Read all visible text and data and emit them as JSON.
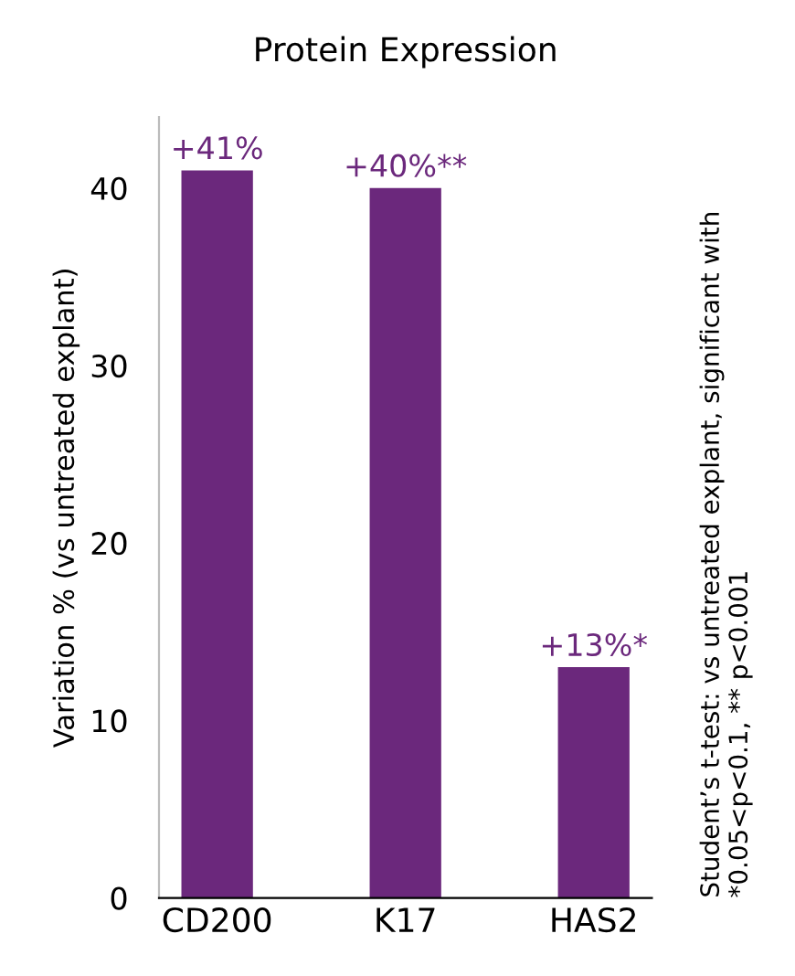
{
  "chart_data": {
    "type": "bar",
    "title": "Protein Expression",
    "ylabel": "Variation % (vs untreated explant)",
    "categories": [
      "CD200",
      "K17",
      "HAS2"
    ],
    "values": [
      41,
      40,
      13
    ],
    "value_labels": [
      "+41%",
      "+40%**",
      "+13%*"
    ],
    "color": "#6b287c",
    "ylim": [
      0,
      44
    ],
    "yticks": [
      0,
      10,
      20,
      30,
      40
    ],
    "grid": false,
    "annotations": [
      "Student’s t-test: vs untreated explant, significant with\n*0.05<p<0.1, ** p<0.001"
    ]
  }
}
